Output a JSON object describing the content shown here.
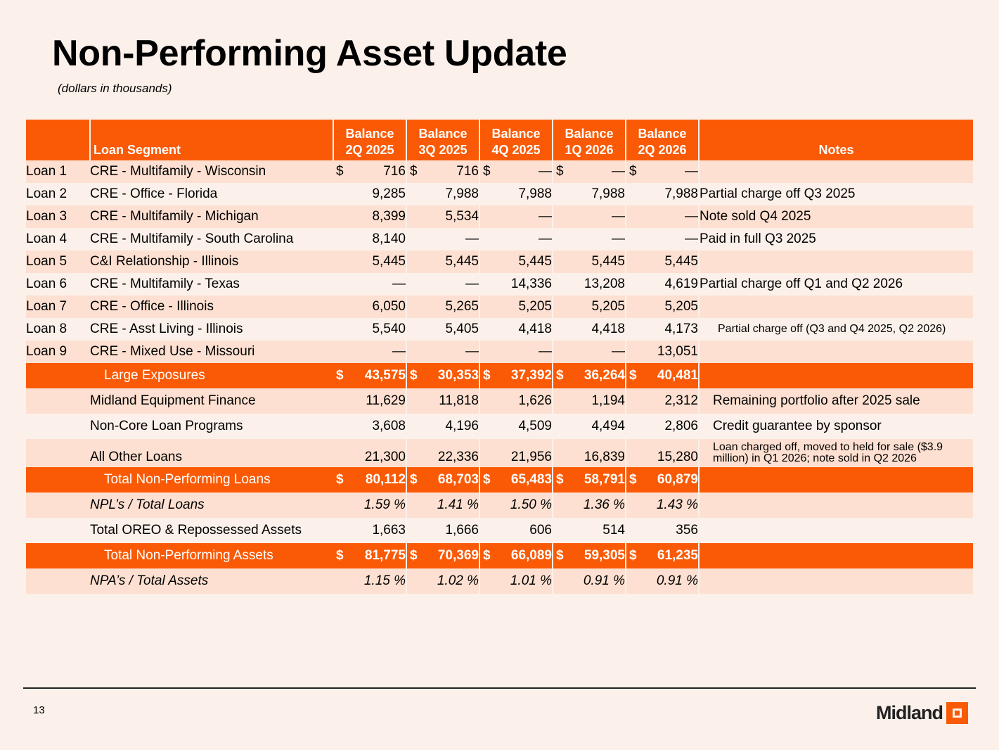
{
  "title": "Non-Performing Asset Update",
  "subtitle": "(dollars in thousands)",
  "header": {
    "loan_segment": "Loan Segment",
    "balances": [
      [
        "Balance",
        "2Q 2025"
      ],
      [
        "Balance",
        "3Q 2025"
      ],
      [
        "Balance",
        "4Q 2025"
      ],
      [
        "Balance",
        "1Q 2026"
      ],
      [
        "Balance",
        "2Q 2026"
      ]
    ],
    "notes": "Notes"
  },
  "loans": [
    {
      "loan": "Loan 1",
      "segment": "CRE - Multifamily - Wisconsin",
      "values": [
        "716",
        "716",
        "—",
        "—",
        "—"
      ],
      "note": ""
    },
    {
      "loan": "Loan 2",
      "segment": "CRE - Office - Florida",
      "values": [
        "9,285",
        "7,988",
        "7,988",
        "7,988",
        "7,988"
      ],
      "note": "Partial charge off Q3 2025"
    },
    {
      "loan": "Loan 3",
      "segment": "CRE - Multifamily - Michigan",
      "values": [
        "8,399",
        "5,534",
        "—",
        "—",
        "—"
      ],
      "note": "Note sold Q4 2025"
    },
    {
      "loan": "Loan 4",
      "segment": "CRE - Multifamily - South Carolina",
      "values": [
        "8,140",
        "—",
        "—",
        "—",
        "—"
      ],
      "note": "Paid in full Q3 2025"
    },
    {
      "loan": "Loan 5",
      "segment": "C&I Relationship - Illinois",
      "values": [
        "5,445",
        "5,445",
        "5,445",
        "5,445",
        "5,445"
      ],
      "note": ""
    },
    {
      "loan": "Loan 6",
      "segment": "CRE - Multifamily - Texas",
      "values": [
        "—",
        "—",
        "14,336",
        "13,208",
        "4,619"
      ],
      "note": "Partial charge off Q1 and Q2 2026"
    },
    {
      "loan": "Loan 7",
      "segment": "CRE - Office - Illinois",
      "values": [
        "6,050",
        "5,265",
        "5,205",
        "5,205",
        "5,205"
      ],
      "note": ""
    },
    {
      "loan": "Loan 8",
      "segment": "CRE - Asst Living - Illinois",
      "values": [
        "5,540",
        "5,405",
        "4,418",
        "4,418",
        "4,173"
      ],
      "note": "Partial charge off (Q3 and Q4 2025, Q2 2026)"
    },
    {
      "loan": "Loan 9",
      "segment": "CRE - Mixed Use - Missouri",
      "values": [
        "—",
        "—",
        "—",
        "—",
        "13,051"
      ],
      "note": ""
    }
  ],
  "large_exposures": {
    "label": "Large Exposures",
    "values": [
      "43,575",
      "30,353",
      "37,392",
      "36,264",
      "40,481"
    ]
  },
  "other_rows": [
    {
      "segment": "Midland Equipment Finance",
      "values": [
        "11,629",
        "11,818",
        "1,626",
        "1,194",
        "2,312"
      ],
      "note": "Remaining portfolio after 2025 sale"
    },
    {
      "segment": "Non-Core Loan Programs",
      "values": [
        "3,608",
        "4,196",
        "4,509",
        "4,494",
        "2,806"
      ],
      "note": "Credit guarantee by sponsor"
    },
    {
      "segment": "All Other Loans",
      "values": [
        "21,300",
        "22,336",
        "21,956",
        "16,839",
        "15,280"
      ],
      "note": "Loan charged off, moved to held for sale ($3.9 million) in Q1 2026; note sold in Q2 2026"
    }
  ],
  "total_npl": {
    "label": "Total Non-Performing Loans",
    "values": [
      "80,112",
      "68,703",
      "65,483",
      "58,791",
      "60,879"
    ]
  },
  "npl_ratio": {
    "label": "NPL’s / Total Loans",
    "values": [
      "1.59 %",
      "1.41 %",
      "1.50 %",
      "1.36 %",
      "1.43 %"
    ]
  },
  "oreo": {
    "label": "Total OREO & Repossessed Assets",
    "values": [
      "1,663",
      "1,666",
      "606",
      "514",
      "356"
    ]
  },
  "total_npa": {
    "label": "Total Non-Performing Assets",
    "values": [
      "81,775",
      "70,369",
      "66,089",
      "59,305",
      "61,235"
    ]
  },
  "npa_ratio": {
    "label": "NPA’s / Total Assets",
    "values": [
      "1.15 %",
      "1.02 %",
      "1.01 %",
      "0.91 %",
      "0.91 %"
    ]
  },
  "dollar_sign": "$",
  "footer": {
    "page_number": "13",
    "logo": "Midland"
  },
  "colors": {
    "accent": "#fa5a05",
    "band": "#fde0d1",
    "background": "#fbf1ea"
  }
}
